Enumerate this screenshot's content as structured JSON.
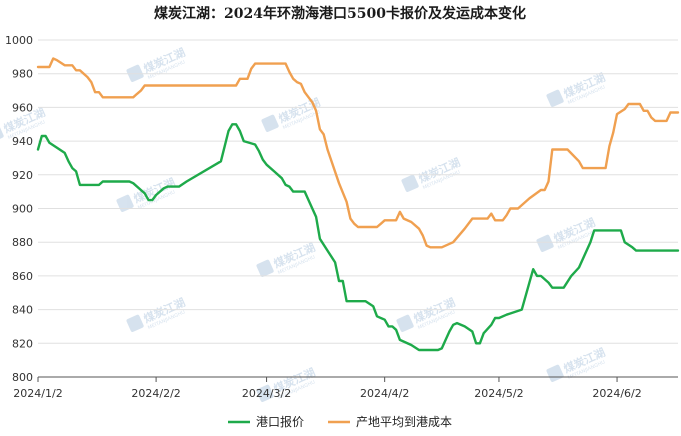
{
  "chart_data": {
    "type": "line",
    "title": "煤炭江湖：2024年环渤海港口5500卡报价及发运成本变化",
    "xlabel": "",
    "ylabel": "",
    "x_ticks": [
      "2024/1/2",
      "2024/2/2",
      "2024/3/2",
      "2024/4/2",
      "2024/5/2",
      "2024/6/2"
    ],
    "xlim": [
      "2024/1/2",
      "2024/6/18"
    ],
    "ylim": [
      800,
      1000
    ],
    "y_ticks": [
      800,
      820,
      840,
      860,
      880,
      900,
      920,
      940,
      960,
      980,
      1000
    ],
    "grid": "horizontal",
    "legend": "bottom",
    "series": [
      {
        "name": "港口报价",
        "color": "#1eaa4a",
        "points": [
          [
            "2024/1/2",
            935
          ],
          [
            "2024/1/3",
            943
          ],
          [
            "2024/1/4",
            943
          ],
          [
            "2024/1/5",
            939
          ],
          [
            "2024/1/7",
            936
          ],
          [
            "2024/1/9",
            933
          ],
          [
            "2024/1/10",
            928
          ],
          [
            "2024/1/11",
            924
          ],
          [
            "2024/1/12",
            922
          ],
          [
            "2024/1/13",
            914
          ],
          [
            "2024/1/15",
            914
          ],
          [
            "2024/1/18",
            914
          ],
          [
            "2024/1/19",
            916
          ],
          [
            "2024/1/22",
            916
          ],
          [
            "2024/1/26",
            916
          ],
          [
            "2024/1/27",
            915
          ],
          [
            "2024/1/29",
            911
          ],
          [
            "2024/1/30",
            909
          ],
          [
            "2024/1/31",
            905
          ],
          [
            "2024/2/1",
            905
          ],
          [
            "2024/2/2",
            908
          ],
          [
            "2024/2/4",
            912
          ],
          [
            "2024/2/5",
            913
          ],
          [
            "2024/2/8",
            913
          ],
          [
            "2024/2/10",
            916
          ],
          [
            "2024/2/19",
            928
          ],
          [
            "2024/2/20",
            937
          ],
          [
            "2024/2/21",
            946
          ],
          [
            "2024/2/22",
            950
          ],
          [
            "2024/2/23",
            950
          ],
          [
            "2024/2/24",
            946
          ],
          [
            "2024/2/25",
            940
          ],
          [
            "2024/2/28",
            938
          ],
          [
            "2024/2/29",
            934
          ],
          [
            "2024/3/1",
            929
          ],
          [
            "2024/3/2",
            926
          ],
          [
            "2024/3/4",
            922
          ],
          [
            "2024/3/6",
            918
          ],
          [
            "2024/3/7",
            914
          ],
          [
            "2024/3/8",
            913
          ],
          [
            "2024/3/9",
            910
          ],
          [
            "2024/3/12",
            910
          ],
          [
            "2024/3/14",
            900
          ],
          [
            "2024/3/15",
            895
          ],
          [
            "2024/3/16",
            882
          ],
          [
            "2024/3/18",
            875
          ],
          [
            "2024/3/20",
            868
          ],
          [
            "2024/3/21",
            857
          ],
          [
            "2024/3/22",
            857
          ],
          [
            "2024/3/23",
            845
          ],
          [
            "2024/3/28",
            845
          ],
          [
            "2024/3/30",
            842
          ],
          [
            "2024/3/31",
            836
          ],
          [
            "2024/4/2",
            834
          ],
          [
            "2024/4/3",
            830
          ],
          [
            "2024/4/4",
            830
          ],
          [
            "2024/4/5",
            828
          ],
          [
            "2024/4/6",
            822
          ],
          [
            "2024/4/9",
            819
          ],
          [
            "2024/4/11",
            816
          ],
          [
            "2024/4/16",
            816
          ],
          [
            "2024/4/17",
            817
          ],
          [
            "2024/4/18",
            822
          ],
          [
            "2024/4/19",
            827
          ],
          [
            "2024/4/20",
            831
          ],
          [
            "2024/4/21",
            832
          ],
          [
            "2024/4/23",
            830
          ],
          [
            "2024/4/25",
            827
          ],
          [
            "2024/4/26",
            820
          ],
          [
            "2024/4/27",
            820
          ],
          [
            "2024/4/28",
            826
          ],
          [
            "2024/4/30",
            831
          ],
          [
            "2024/5/1",
            835
          ],
          [
            "2024/5/2",
            835
          ],
          [
            "2024/5/4",
            837
          ],
          [
            "2024/5/8",
            840
          ],
          [
            "2024/5/10",
            856
          ],
          [
            "2024/5/11",
            864
          ],
          [
            "2024/5/12",
            860
          ],
          [
            "2024/5/13",
            860
          ],
          [
            "2024/5/15",
            856
          ],
          [
            "2024/5/16",
            853
          ],
          [
            "2024/5/19",
            853
          ],
          [
            "2024/5/21",
            860
          ],
          [
            "2024/5/23",
            865
          ],
          [
            "2024/5/26",
            880
          ],
          [
            "2024/5/27",
            887
          ],
          [
            "2024/6/3",
            887
          ],
          [
            "2024/6/4",
            880
          ],
          [
            "2024/6/6",
            877
          ],
          [
            "2024/6/7",
            875
          ],
          [
            "2024/6/18",
            875
          ]
        ]
      },
      {
        "name": "产地平均到港成本",
        "color": "#f0a050",
        "points": [
          [
            "2024/1/2",
            984
          ],
          [
            "2024/1/5",
            984
          ],
          [
            "2024/1/6",
            989
          ],
          [
            "2024/1/7",
            988
          ],
          [
            "2024/1/9",
            985
          ],
          [
            "2024/1/11",
            985
          ],
          [
            "2024/1/12",
            982
          ],
          [
            "2024/1/13",
            982
          ],
          [
            "2024/1/15",
            978
          ],
          [
            "2024/1/16",
            975
          ],
          [
            "2024/1/17",
            969
          ],
          [
            "2024/1/18",
            969
          ],
          [
            "2024/1/19",
            966
          ],
          [
            "2024/1/27",
            966
          ],
          [
            "2024/1/28",
            968
          ],
          [
            "2024/1/29",
            970
          ],
          [
            "2024/1/30",
            973
          ],
          [
            "2024/2/23",
            973
          ],
          [
            "2024/2/24",
            977
          ],
          [
            "2024/2/26",
            977
          ],
          [
            "2024/2/27",
            983
          ],
          [
            "2024/2/28",
            986
          ],
          [
            "2024/3/7",
            986
          ],
          [
            "2024/3/8",
            981
          ],
          [
            "2024/3/9",
            977
          ],
          [
            "2024/3/10",
            975
          ],
          [
            "2024/3/11",
            974
          ],
          [
            "2024/3/12",
            969
          ],
          [
            "2024/3/14",
            963
          ],
          [
            "2024/3/15",
            958
          ],
          [
            "2024/3/16",
            947
          ],
          [
            "2024/3/17",
            944
          ],
          [
            "2024/3/18",
            935
          ],
          [
            "2024/3/21",
            915
          ],
          [
            "2024/3/23",
            904
          ],
          [
            "2024/3/24",
            894
          ],
          [
            "2024/3/25",
            891
          ],
          [
            "2024/3/26",
            889
          ],
          [
            "2024/3/31",
            889
          ],
          [
            "2024/4/1",
            891
          ],
          [
            "2024/4/2",
            893
          ],
          [
            "2024/4/5",
            893
          ],
          [
            "2024/4/6",
            898
          ],
          [
            "2024/4/7",
            894
          ],
          [
            "2024/4/9",
            892
          ],
          [
            "2024/4/11",
            888
          ],
          [
            "2024/4/12",
            884
          ],
          [
            "2024/4/13",
            878
          ],
          [
            "2024/4/14",
            877
          ],
          [
            "2024/4/17",
            877
          ],
          [
            "2024/4/20",
            880
          ],
          [
            "2024/4/23",
            888
          ],
          [
            "2024/4/25",
            894
          ],
          [
            "2024/4/29",
            894
          ],
          [
            "2024/4/30",
            897
          ],
          [
            "2024/5/1",
            893
          ],
          [
            "2024/5/3",
            893
          ],
          [
            "2024/5/4",
            896
          ],
          [
            "2024/5/5",
            900
          ],
          [
            "2024/5/7",
            900
          ],
          [
            "2024/5/10",
            906
          ],
          [
            "2024/5/13",
            911
          ],
          [
            "2024/5/14",
            911
          ],
          [
            "2024/5/15",
            916
          ],
          [
            "2024/5/16",
            935
          ],
          [
            "2024/5/20",
            935
          ],
          [
            "2024/5/23",
            928
          ],
          [
            "2024/5/24",
            924
          ],
          [
            "2024/5/30",
            924
          ],
          [
            "2024/5/31",
            937
          ],
          [
            "2024/6/1",
            945
          ],
          [
            "2024/6/2",
            956
          ],
          [
            "2024/6/4",
            959
          ],
          [
            "2024/6/5",
            962
          ],
          [
            "2024/6/8",
            962
          ],
          [
            "2024/6/9",
            958
          ],
          [
            "2024/6/10",
            958
          ],
          [
            "2024/6/11",
            954
          ],
          [
            "2024/6/12",
            952
          ],
          [
            "2024/6/15",
            952
          ],
          [
            "2024/6/16",
            957
          ],
          [
            "2024/6/18",
            957
          ]
        ]
      }
    ]
  },
  "watermark": {
    "text": "煤炭江湖",
    "sub": "MEITANJIANGHU"
  }
}
